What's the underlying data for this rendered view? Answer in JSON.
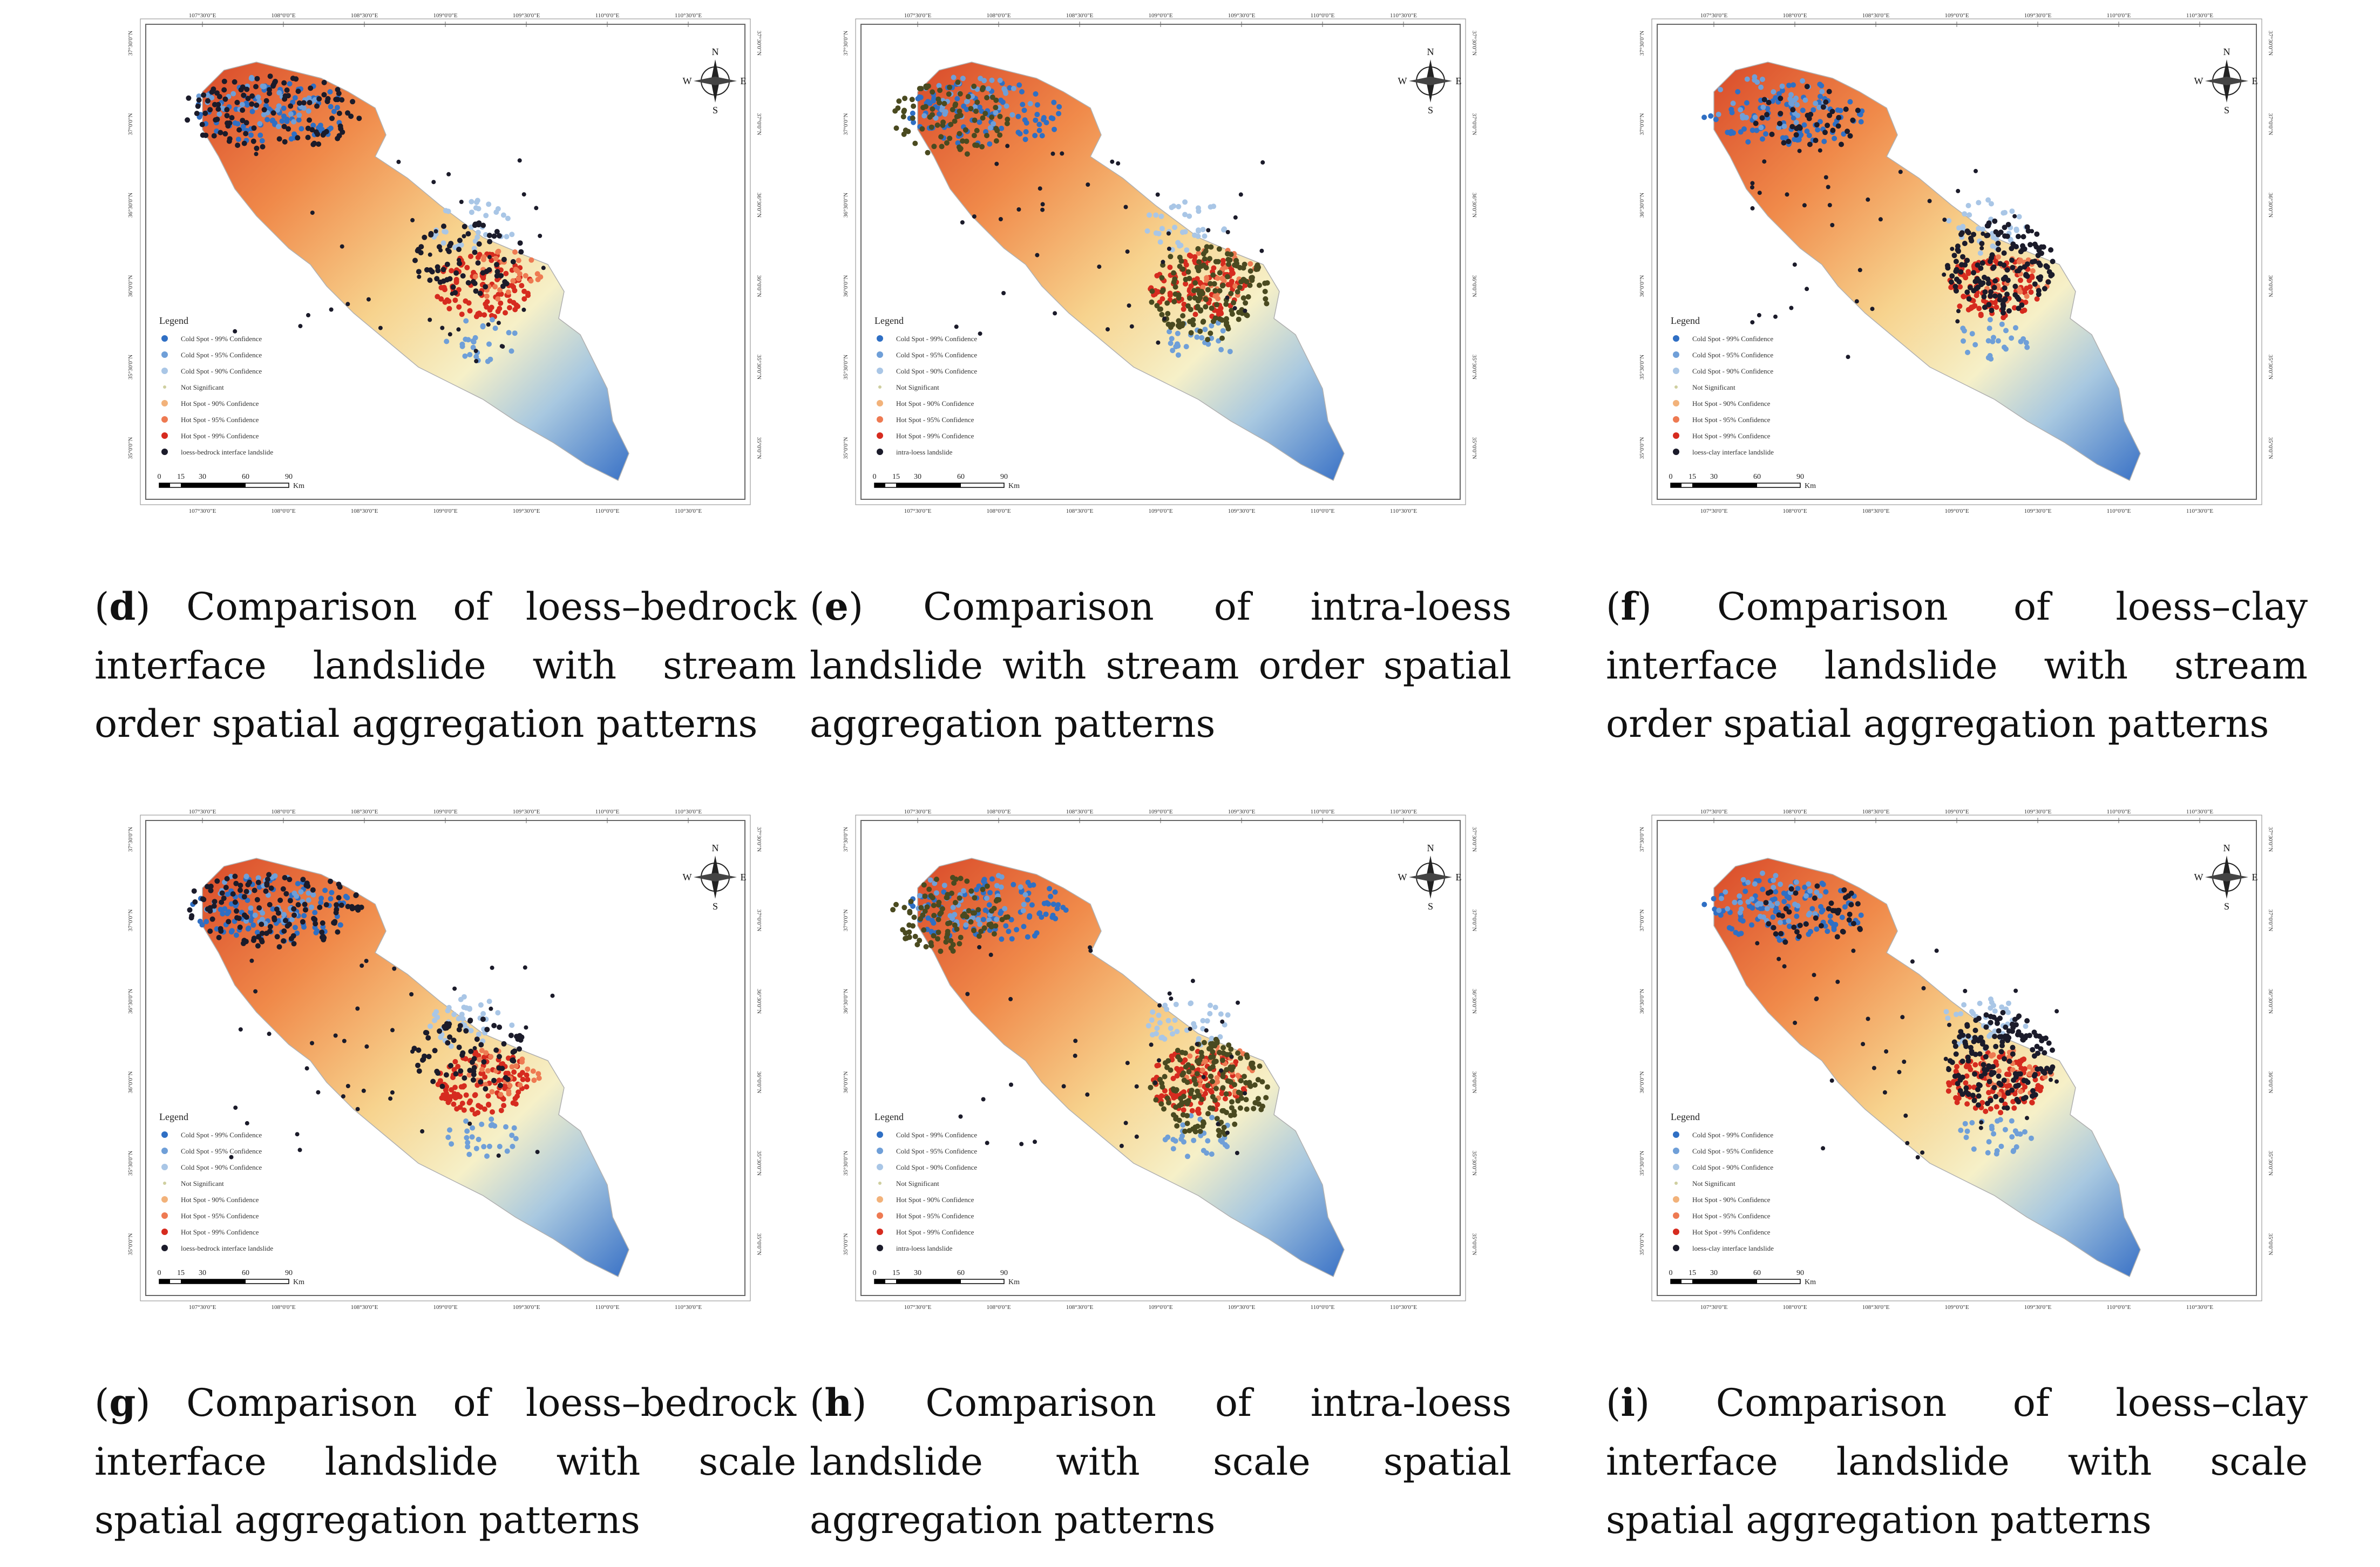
{
  "coord_labels": {
    "top_lon": [
      "107°30'0\"E",
      "108°0'0\"E",
      "108°30'0\"E",
      "109°0'0\"E",
      "109°30'0\"E",
      "110°0'0\"E",
      "110°30'0\"E"
    ],
    "lat": [
      "37°30'0\"N",
      "37°0'0\"N",
      "36°30'0\"N",
      "36°0'0\"N",
      "35°30'0\"N",
      "35°0'0\"N"
    ]
  },
  "compass": {
    "n": "N",
    "s": "S",
    "e": "E",
    "w": "W"
  },
  "scale_bar": {
    "ticks": [
      "0",
      "15",
      "30",
      "60",
      "90"
    ],
    "unit": "Km"
  },
  "legend_title": "Legend",
  "colors": {
    "cold99": "#2f6fc4",
    "cold95": "#6f9fd8",
    "cold90": "#a9c6e6",
    "ns": "#cfcfa0",
    "hot90": "#f2b27a",
    "hot95": "#ee7a52",
    "hot99": "#d62b1f",
    "landslide": "#1b1b2a",
    "landslide_alt": "#4a4a20"
  },
  "panels": [
    {
      "id": "d",
      "letter": "d",
      "caption": "Comparison of loess–bedrock interface landslide with stream order spatial aggregation patterns",
      "legend": [
        "Cold Spot - 99% Confidence",
        "Cold Spot - 95% Confidence",
        "Cold Spot - 90% Confidence",
        "Not Significant",
        "Hot Spot - 90% Confidence",
        "Hot Spot - 95% Confidence",
        "Hot Spot - 99% Confidence",
        "loess-bedrock interface landslide"
      ]
    },
    {
      "id": "e",
      "letter": "e",
      "caption": "Comparison of intra-loess landslide with stream order spatial aggregation patterns",
      "legend": [
        "Cold Spot - 99% Confidence",
        "Cold Spot - 95% Confidence",
        "Cold Spot - 90% Confidence",
        "Not Significant",
        "Hot Spot - 90% Confidence",
        "Hot Spot - 95% Confidence",
        "Hot Spot - 99% Confidence",
        "intra-loess landslide"
      ]
    },
    {
      "id": "f",
      "letter": "f",
      "caption": "Comparison of loess–clay interface landslide with stream order spatial aggregation patterns",
      "legend": [
        "Cold Spot - 99% Confidence",
        "Cold Spot - 95% Confidence",
        "Cold Spot - 90% Confidence",
        "Not Significant",
        "Hot Spot - 90% Confidence",
        "Hot Spot - 95% Confidence",
        "Hot Spot - 99% Confidence",
        "loess-clay interface landslide"
      ]
    },
    {
      "id": "g",
      "letter": "g",
      "caption": "Comparison of loess–bedrock interface landslide with scale spatial aggregation patterns",
      "legend": [
        "Cold Spot - 99% Confidence",
        "Cold Spot - 95% Confidence",
        "Cold Spot - 90% Confidence",
        "Not Significant",
        "Hot Spot - 90% Confidence",
        "Hot Spot - 95% Confidence",
        "Hot Spot - 99% Confidence",
        "loess-bedrock interface landslide"
      ]
    },
    {
      "id": "h",
      "letter": "h",
      "caption": "Comparison of intra-loess landslide with scale spatial aggregation patterns",
      "legend": [
        "Cold Spot - 99% Confidence",
        "Cold Spot - 95% Confidence",
        "Cold Spot - 90% Confidence",
        "Not Significant",
        "Hot Spot - 90% Confidence",
        "Hot Spot - 95% Confidence",
        "Hot Spot - 99% Confidence",
        "intra-loess landslide"
      ]
    },
    {
      "id": "i",
      "letter": "i",
      "caption": "Comparison of loess–clay interface landslide with scale spatial aggregation patterns",
      "legend": [
        "Cold Spot - 99% Confidence",
        "Cold Spot - 95% Confidence",
        "Cold Spot - 90% Confidence",
        "Not Significant",
        "Hot Spot - 90% Confidence",
        "Hot Spot - 95% Confidence",
        "Hot Spot - 99% Confidence",
        "loess-clay interface landslide"
      ]
    }
  ]
}
